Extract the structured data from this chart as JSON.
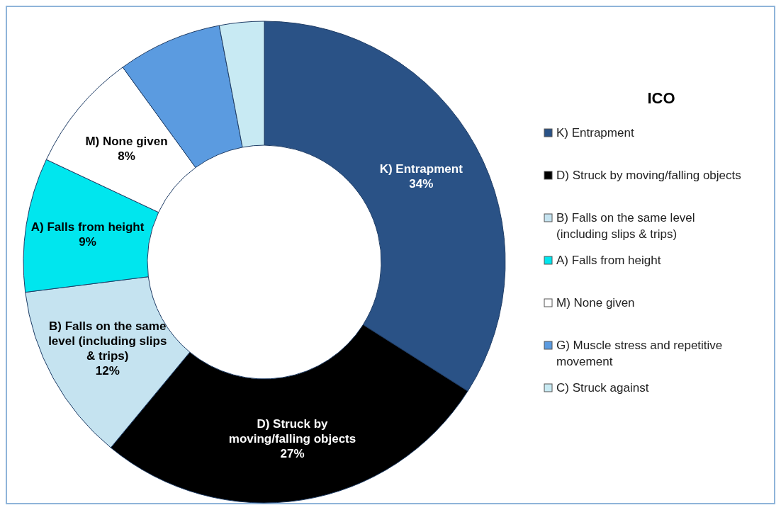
{
  "chart_data": {
    "type": "donut",
    "legend_title": "ICO",
    "legend": "right",
    "categories": [
      "K) Entrapment",
      "D) Struck by moving/falling objects",
      "B) Falls on the same level (including slips & trips)",
      "A) Falls from height",
      "M) None given",
      "G) Muscle stress and repetitive movement",
      "C) Struck against"
    ],
    "values": [
      34,
      27,
      12,
      9,
      8,
      7,
      3
    ],
    "value_labels": [
      "34%",
      "27%",
      "12%",
      "9%",
      "8%",
      null,
      null
    ],
    "colors": [
      "#2a5286",
      "#000000",
      "#c5e3f0",
      "#00e6ee",
      "#ffffff",
      "#5b9be0",
      "#c8eaf3"
    ]
  }
}
